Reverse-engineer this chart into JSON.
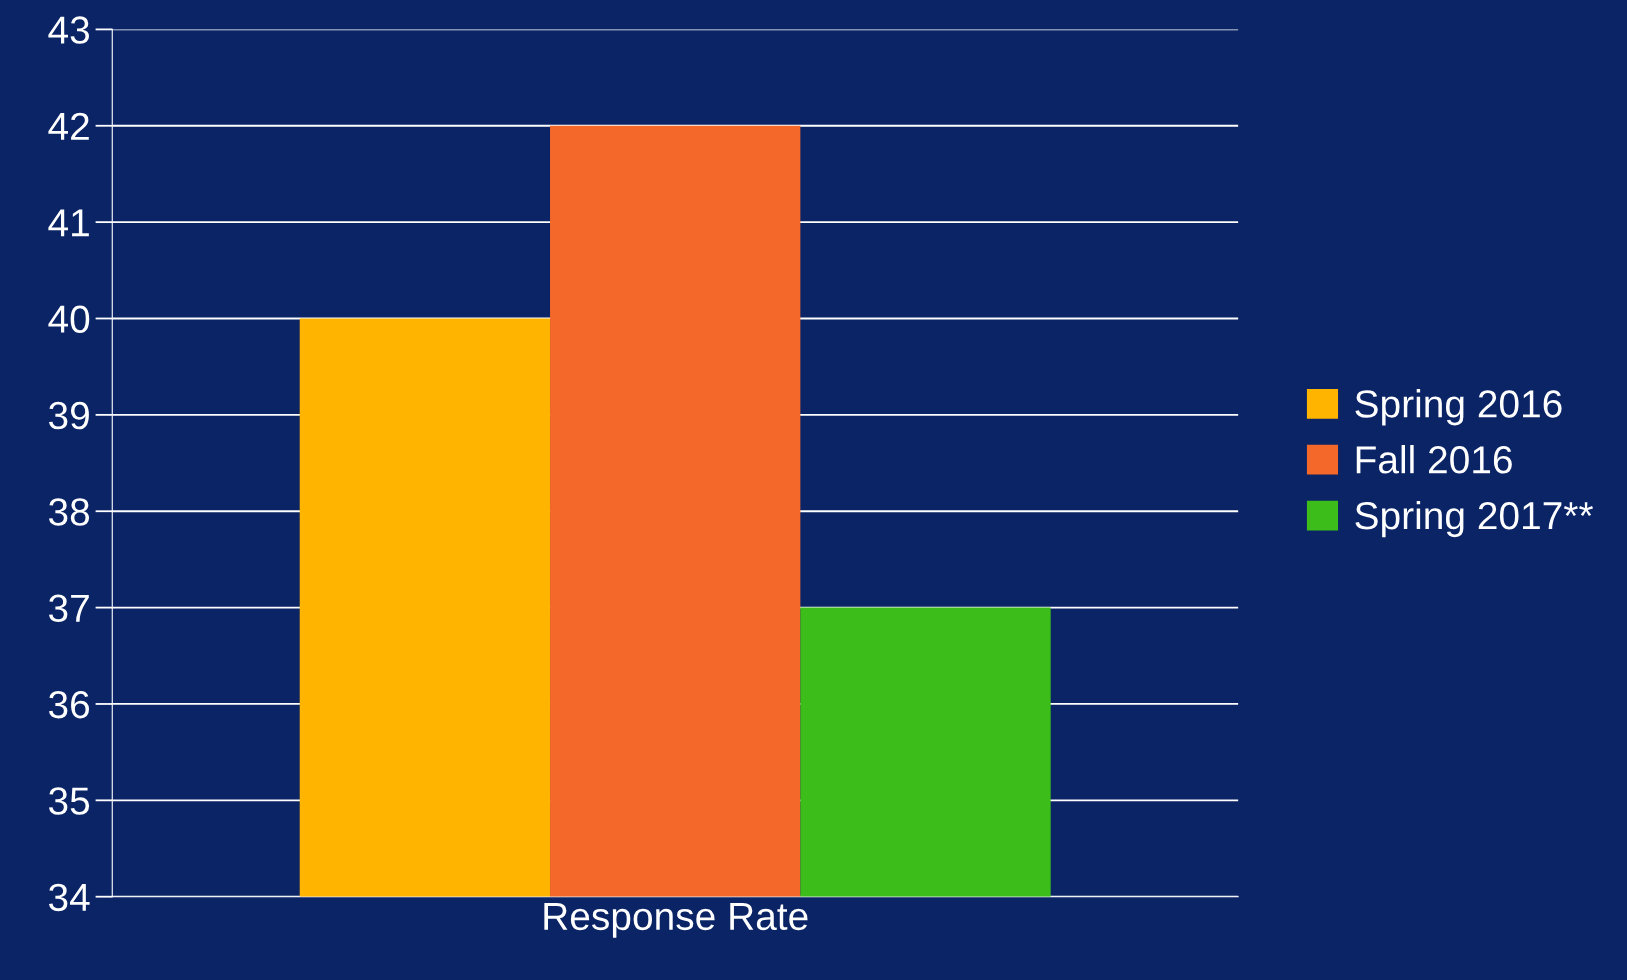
{
  "chart_data": {
    "type": "bar",
    "categories": [
      "Response Rate"
    ],
    "series": [
      {
        "name": "Spring 2016",
        "color": "#ffb400",
        "values": [
          40
        ]
      },
      {
        "name": "Fall 2016",
        "color": "#f4692a",
        "values": [
          42
        ]
      },
      {
        "name": "Spring 2017**",
        "color": "#3cbd1a",
        "values": [
          37
        ]
      }
    ],
    "ylim": [
      34,
      43
    ],
    "yticks": [
      34,
      35,
      36,
      37,
      38,
      39,
      40,
      41,
      42,
      43
    ],
    "grid": "y",
    "legend": "right"
  }
}
